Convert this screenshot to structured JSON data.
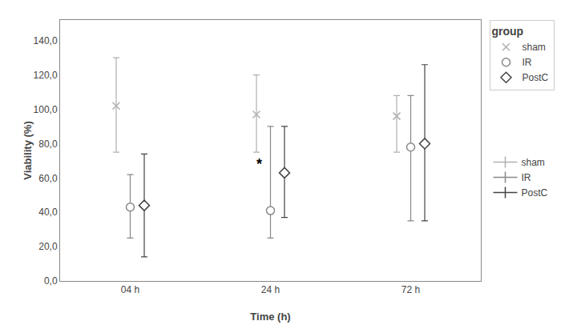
{
  "chart_data": {
    "type": "scatter",
    "xlabel": "Time (h)",
    "ylabel": "Viability (%)",
    "categories": [
      "04 h",
      "24 h",
      "72 h"
    ],
    "ylim": [
      0,
      152
    ],
    "yticks": [
      {
        "value": 0,
        "label": "0,0"
      },
      {
        "value": 20,
        "label": "20,0"
      },
      {
        "value": 40,
        "label": "40,0"
      },
      {
        "value": 60,
        "label": "60,0"
      },
      {
        "value": 80,
        "label": "80,0"
      },
      {
        "value": 100,
        "label": "100,0"
      },
      {
        "value": 120,
        "label": "120,0"
      },
      {
        "value": 140,
        "label": "140,0"
      }
    ],
    "grid": false,
    "legend": "right",
    "legend_title": "group",
    "series": [
      {
        "name": "sham",
        "color": "#b0b0b0",
        "marker": "x",
        "values": [
          102,
          97,
          96
        ],
        "ci_low": [
          75,
          75,
          75
        ],
        "ci_high": [
          130,
          120,
          108
        ]
      },
      {
        "name": "IR",
        "color": "#888888",
        "marker": "circle",
        "values": [
          43,
          41,
          78
        ],
        "ci_low": [
          25,
          25,
          35
        ],
        "ci_high": [
          62,
          90,
          108
        ]
      },
      {
        "name": "PostC",
        "color": "#444444",
        "marker": "diamond",
        "values": [
          44,
          63,
          80
        ],
        "ci_low": [
          14,
          37,
          35
        ],
        "ci_high": [
          74,
          90,
          126
        ]
      }
    ],
    "annotations": [
      {
        "text": "*",
        "x": "24 h",
        "y": 68
      }
    ]
  }
}
